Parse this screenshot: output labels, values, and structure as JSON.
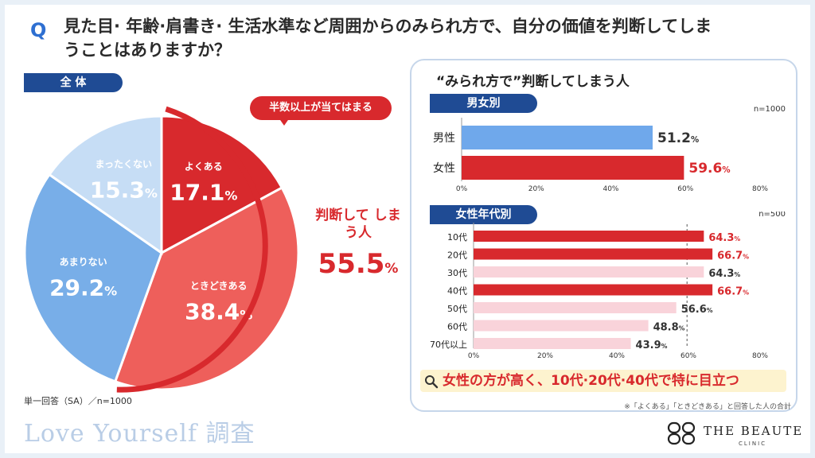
{
  "header": {
    "q_mark": "Q",
    "question": "見た目· 年齢·肩書き· 生活水準など周囲からのみられ方で、自分の価値を判断してしまうことはありますか？"
  },
  "left": {
    "pill": "全 体",
    "callout": "半数以上が当てはまる",
    "combined_label": "判断して しまう人",
    "combined_value": "55.5",
    "combined_unit": "%",
    "note": "単一回答（SA）／n=1000",
    "brand": "Love Yourself 調査"
  },
  "right": {
    "title": "“みられ方で”判断してしまう人",
    "gender_pill": "男女別",
    "age_pill": "女性年代別",
    "highlight": "女性の方が高く、10代·20代·40代で特に目立つ",
    "footnote": "※「よくある」「ときどきある」と回答した人の合計"
  },
  "logo": {
    "name": "THE BEAUTE",
    "sub": "CLINIC"
  },
  "colors": {
    "red": "#d8292d",
    "salmon": "#ee5f5b",
    "blue_light": "#c6ddf5",
    "blue_mid": "#78aee8",
    "blue": "#5a9be5",
    "pink": "#f9d3da",
    "navy": "#1f4b94"
  },
  "chart_data": [
    {
      "type": "pie",
      "categories": [
        "よくある",
        "ときどきある",
        "あまりない",
        "まったくない"
      ],
      "values": [
        17.1,
        38.4,
        29.2,
        15.3
      ],
      "unit": "%",
      "colors": [
        "#d8292d",
        "#ee5f5b",
        "#78aee8",
        "#c6ddf5"
      ]
    },
    {
      "type": "bar",
      "orientation": "horizontal",
      "title": "男女別",
      "n_label": "n=1000",
      "categories": [
        "男性",
        "女性"
      ],
      "values": [
        51.2,
        59.6
      ],
      "unit": "%",
      "bar_colors": [
        "#6fa8eb",
        "#d8292d"
      ],
      "xlim": [
        0,
        80
      ],
      "xticks": [
        "0%",
        "20%",
        "40%",
        "60%",
        "80%"
      ],
      "grid": false
    },
    {
      "type": "bar",
      "orientation": "horizontal",
      "title": "女性年代別",
      "n_label": "n=500",
      "categories": [
        "10代",
        "20代",
        "30代",
        "40代",
        "50代",
        "60代",
        "70代以上"
      ],
      "values": [
        64.3,
        66.7,
        64.3,
        66.7,
        56.6,
        48.8,
        43.9
      ],
      "unit": "%",
      "bar_colors": [
        "#d8292d",
        "#d8292d",
        "#f9d3da",
        "#d8292d",
        "#f9d3da",
        "#f9d3da",
        "#f9d3da"
      ],
      "highlight_flags": [
        true,
        true,
        false,
        true,
        false,
        false,
        false
      ],
      "reference_line": 59.6,
      "xlim": [
        0,
        80
      ],
      "xticks": [
        "0%",
        "20%",
        "40%",
        "60%",
        "80%"
      ],
      "grid": false
    }
  ]
}
